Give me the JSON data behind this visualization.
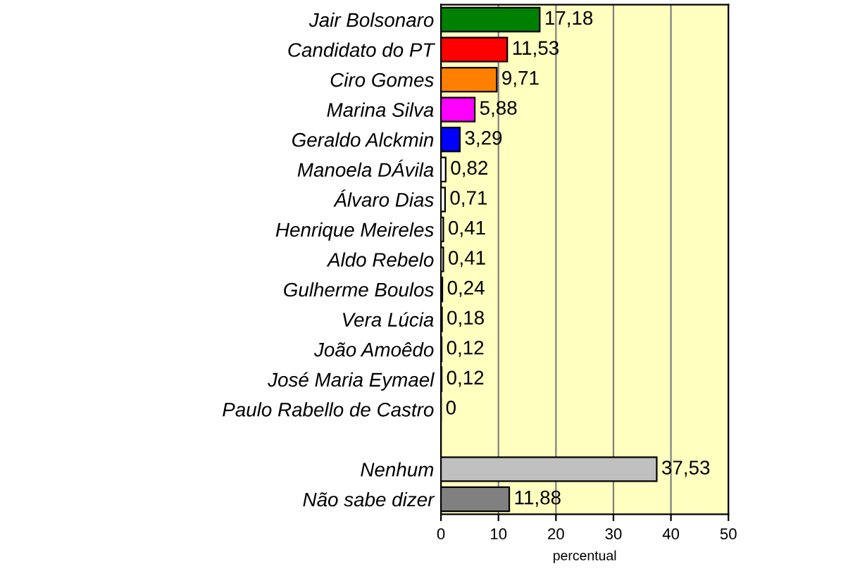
{
  "chart_data": {
    "type": "bar",
    "orientation": "horizontal",
    "xlabel": "percentual",
    "categories": [
      "Jair Bolsonaro",
      "Candidato do PT",
      "Ciro Gomes",
      "Marina Silva",
      "Geraldo Alckmin",
      "Manoela DÁvila",
      "Álvaro Dias",
      "Henrique Meireles",
      "Aldo Rebelo",
      "Gulherme Boulos",
      "Vera Lúcia",
      "João Amoêdo",
      "José Maria Eymael",
      "Paulo Rabello de Castro",
      null,
      "Nenhum",
      "Não sabe dizer"
    ],
    "values": [
      17.18,
      11.53,
      9.71,
      5.88,
      3.29,
      0.82,
      0.71,
      0.41,
      0.41,
      0.24,
      0.18,
      0.12,
      0.12,
      0,
      null,
      37.53,
      11.88
    ],
    "value_labels": [
      "17,18",
      "11,53",
      "9,71",
      "5,88",
      "3,29",
      "0,82",
      "0,71",
      "0,41",
      "0,41",
      "0,24",
      "0,18",
      "0,12",
      "0,12",
      "0",
      null,
      "37,53",
      "11,88"
    ],
    "colors": [
      "#008000",
      "#ff0000",
      "#ff8000",
      "#ff00ff",
      "#0000ff",
      "#ffffff",
      "#ffffff",
      "#ffffff",
      "#ffffff",
      "#ffffff",
      "#ffffff",
      "#ffffff",
      "#ffffff",
      "#ffffff",
      "#ffffff",
      "#c0c0c0",
      "#808080"
    ],
    "xlim": [
      0,
      50
    ],
    "xticks": [
      0,
      10,
      20,
      30,
      40,
      50
    ],
    "grid": "x"
  }
}
